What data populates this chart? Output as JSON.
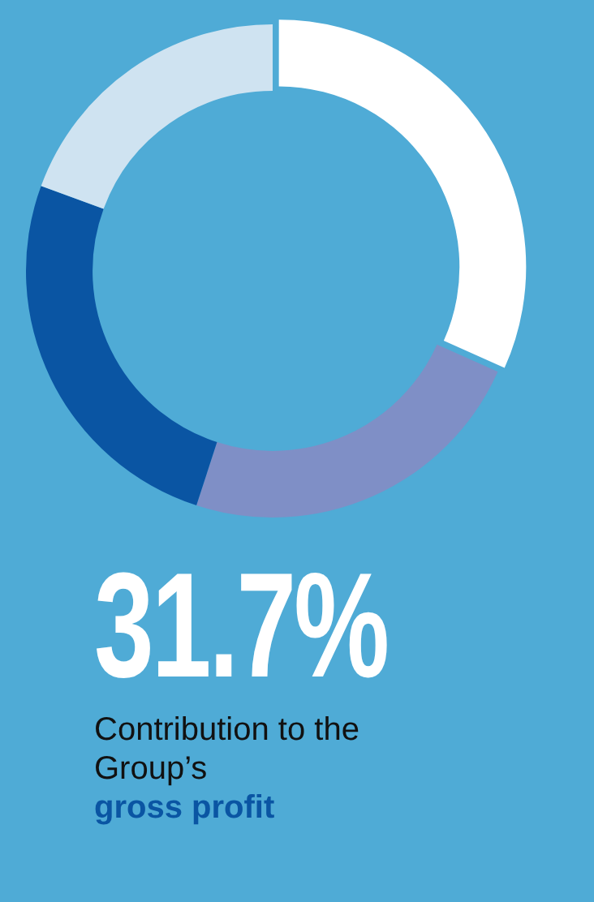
{
  "chart_data": {
    "type": "donut",
    "categories": [
      null,
      null,
      null,
      null
    ],
    "values": [
      31.7,
      23.3,
      25.6,
      19.4
    ],
    "colors": [
      "#ffffff",
      "#7f8fc6",
      "#0a55a3",
      "#cfe3f1"
    ],
    "annotations": [
      "31.7%",
      "Contribution to the Group’s",
      "gross profit"
    ],
    "legend": false
  }
}
